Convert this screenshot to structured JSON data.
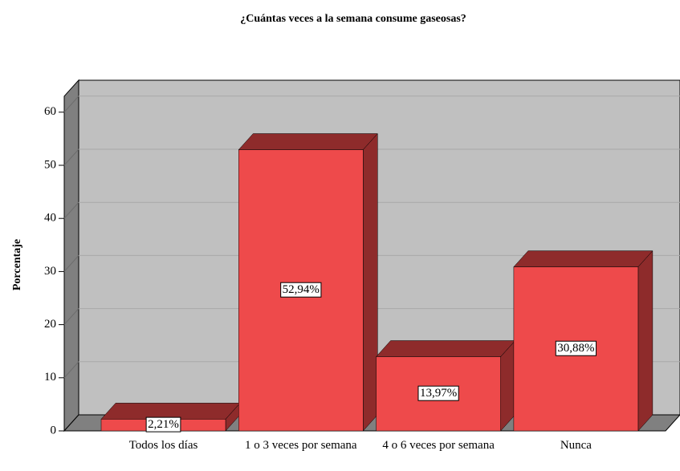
{
  "chart_data": {
    "type": "bar3d",
    "title": "¿Cuántas veces a la semana consume gaseosas?",
    "ylabel": "Porcentaje",
    "categories": [
      "Todos los días",
      "1 o 3 veces por semana",
      "4 o 6 veces por semana",
      "Nunca"
    ],
    "values": [
      2.21,
      52.94,
      13.97,
      30.88
    ],
    "value_labels": [
      "2,21%",
      "52,94%",
      "13,97%",
      "30,88%"
    ],
    "color": "#ee4a4b",
    "ylim": [
      0,
      63
    ],
    "yticks": [
      0,
      10,
      20,
      30,
      40,
      50,
      60
    ],
    "grid": true
  }
}
